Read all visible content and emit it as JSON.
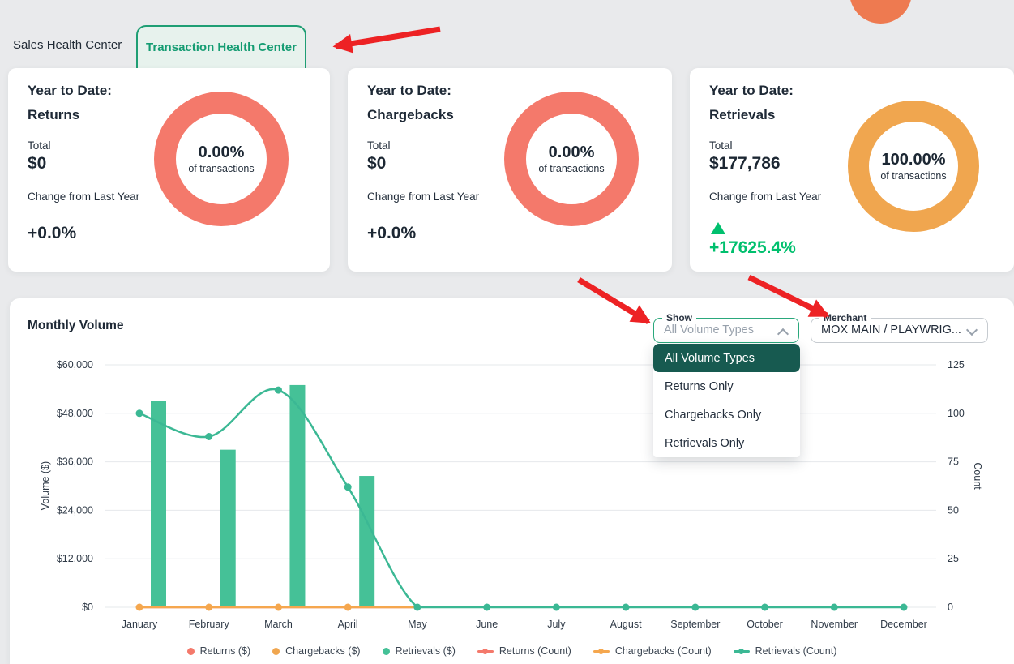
{
  "colors": {
    "salmon": "#f4796b",
    "orange": "#f0a64f",
    "orange_line": "#f5a74e",
    "bar_green": "#45c197",
    "line_green": "#3bb894",
    "positive_green": "#00c06e",
    "arrow_red": "#ed2224",
    "top_circle": "#ee7a50",
    "grid": "#e6e8eb",
    "menu_selected_bg": "#175a50"
  },
  "tabs": {
    "sales": "Sales Health Center",
    "transaction": "Transaction Health Center"
  },
  "cards": [
    {
      "title": "Year to Date:",
      "metric": "Returns",
      "total_label": "Total",
      "total_value": "$0",
      "change_label": "Change from Last Year",
      "change_value": "+0.0%",
      "change_positive": false,
      "donut": {
        "pct": "0.00%",
        "sub": "of transactions",
        "color": "#f4796b"
      }
    },
    {
      "title": "Year to Date:",
      "metric": "Chargebacks",
      "total_label": "Total",
      "total_value": "$0",
      "change_label": "Change from Last Year",
      "change_value": "+0.0%",
      "change_positive": false,
      "donut": {
        "pct": "0.00%",
        "sub": "of transactions",
        "color": "#f4796b"
      }
    },
    {
      "title": "Year to Date:",
      "metric": "Retrievals",
      "total_label": "Total",
      "total_value": "$177,786",
      "change_label": "Change from Last Year",
      "change_value": "+17625.4%",
      "change_positive": true,
      "donut": {
        "pct": "100.00%",
        "sub": "of transactions",
        "color": "#f0a64f"
      }
    }
  ],
  "panel": {
    "title": "Monthly Volume",
    "show_select": {
      "label": "Show",
      "value": "All Volume Types",
      "open": true,
      "options": [
        "All Volume Types",
        "Returns Only",
        "Chargebacks Only",
        "Retrievals Only"
      ],
      "selected_option": "All Volume Types"
    },
    "merchant_select": {
      "label": "Merchant",
      "value": "MOX MAIN / PLAYWRIG..."
    }
  },
  "chart_data": {
    "type": "bar+line",
    "title": "Monthly Volume",
    "categories": [
      "January",
      "February",
      "March",
      "April",
      "May",
      "June",
      "July",
      "August",
      "September",
      "October",
      "November",
      "December"
    ],
    "left_axis": {
      "label": "Volume ($)",
      "range": [
        0,
        60000
      ],
      "ticks": [
        "$60,000",
        "$48,000",
        "$36,000",
        "$24,000",
        "$12,000",
        "$0"
      ],
      "tick_values": [
        60000,
        48000,
        36000,
        24000,
        12000,
        0
      ]
    },
    "right_axis": {
      "label": "Count",
      "range": [
        0,
        125
      ],
      "ticks": [
        "125",
        "100",
        "75",
        "50",
        "25",
        "0"
      ],
      "tick_values": [
        125,
        100,
        75,
        50,
        25,
        0
      ]
    },
    "series": [
      {
        "name": "Returns ($)",
        "type": "bar",
        "axis": "left",
        "color": "#f4796b",
        "values": [
          0,
          0,
          0,
          0,
          0,
          0,
          0,
          0,
          0,
          0,
          0,
          0
        ]
      },
      {
        "name": "Chargebacks ($)",
        "type": "bar",
        "axis": "left",
        "color": "#f0a64f",
        "values": [
          0,
          0,
          0,
          0,
          0,
          0,
          0,
          0,
          0,
          0,
          0,
          0
        ]
      },
      {
        "name": "Retrievals ($)",
        "type": "bar",
        "axis": "left",
        "color": "#45c197",
        "values": [
          51000,
          39000,
          55000,
          32500,
          0,
          0,
          0,
          0,
          0,
          0,
          0,
          0
        ]
      },
      {
        "name": "Returns (Count)",
        "type": "line",
        "axis": "right",
        "color": "#f4796b",
        "values": [
          0,
          0,
          0,
          0,
          0,
          0,
          0,
          0,
          0,
          0,
          0,
          0
        ]
      },
      {
        "name": "Chargebacks (Count)",
        "type": "line",
        "axis": "right",
        "color": "#f5a74e",
        "values": [
          0,
          0,
          0,
          0,
          0,
          0,
          0,
          0,
          0,
          0,
          0,
          0
        ]
      },
      {
        "name": "Retrievals (Count)",
        "type": "line",
        "axis": "right",
        "color": "#3bb894",
        "values": [
          100,
          88,
          112,
          62,
          0,
          0,
          0,
          0,
          0,
          0,
          0,
          0
        ]
      }
    ],
    "legend": [
      {
        "label": "Returns ($)",
        "marker": "circle",
        "color": "#f4796b"
      },
      {
        "label": "Chargebacks ($)",
        "marker": "circle",
        "color": "#f0a64f"
      },
      {
        "label": "Retrievals ($)",
        "marker": "circle",
        "color": "#45c197"
      },
      {
        "label": "Returns (Count)",
        "marker": "line-dot",
        "color": "#f4796b"
      },
      {
        "label": "Chargebacks (Count)",
        "marker": "line-dot",
        "color": "#f5a74e"
      },
      {
        "label": "Retrievals (Count)",
        "marker": "line-dot",
        "color": "#3bb894"
      }
    ],
    "grid": true,
    "legend_position": "bottom"
  },
  "annotations": {
    "arrows": [
      {
        "from": [
          543,
          36
        ],
        "to": [
          414,
          57
        ]
      },
      {
        "from": [
          714,
          345
        ],
        "to": [
          800,
          397
        ]
      },
      {
        "from": [
          924,
          342
        ],
        "to": [
          1020,
          389
        ]
      }
    ]
  }
}
